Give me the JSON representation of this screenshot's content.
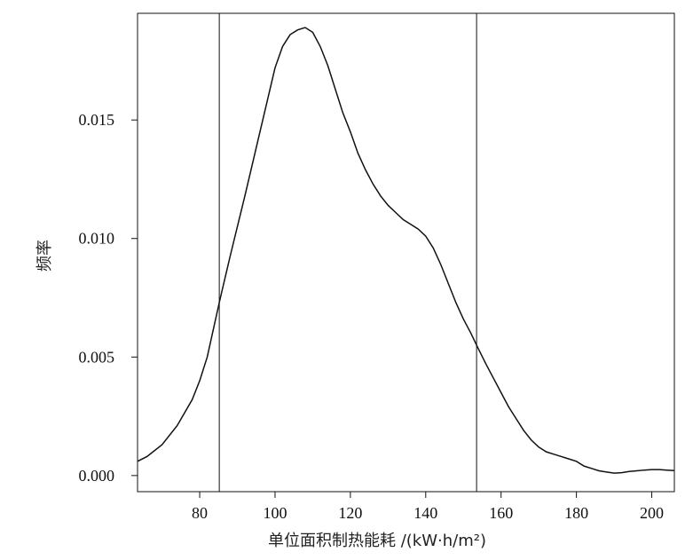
{
  "chart_data": {
    "type": "line",
    "title": "",
    "xlabel": "单位面积制热能耗 /(kW·h/m²)",
    "ylabel": "频率",
    "xlim": [
      63.5,
      206
    ],
    "ylim": [
      -0.00068,
      0.0195
    ],
    "grid": false,
    "legend": "none",
    "x_ticks": [
      "80",
      "100",
      "120",
      "140",
      "160",
      "180",
      "200"
    ],
    "y_ticks": [
      "0.000",
      "0.005",
      "0.010",
      "0.015"
    ],
    "x_tick_values": [
      80,
      100,
      120,
      140,
      160,
      180,
      200
    ],
    "y_tick_values": [
      0.0,
      0.005,
      0.01,
      0.015
    ],
    "vertical_lines": [
      85.2,
      153.5
    ],
    "series": [
      {
        "x": [
          63.5,
          66,
          70,
          74,
          78,
          80,
          82,
          85.2,
          88,
          92,
          96,
          100,
          102,
          104,
          106,
          108,
          110,
          112,
          114,
          116,
          118,
          120,
          122,
          124,
          126,
          128,
          130,
          132,
          134,
          136,
          138,
          140,
          142,
          144,
          146,
          148,
          150,
          152,
          153.5,
          156,
          158,
          160,
          162,
          164,
          166,
          168,
          170,
          172,
          174,
          176,
          178,
          180,
          182,
          184,
          186,
          188,
          190,
          192,
          194,
          196,
          198,
          200,
          202,
          204,
          206
        ],
        "y": [
          0.0006,
          0.0008,
          0.0013,
          0.0021,
          0.0032,
          0.004,
          0.005,
          0.0073,
          0.0092,
          0.0118,
          0.0145,
          0.0172,
          0.0181,
          0.0186,
          0.0188,
          0.0189,
          0.0187,
          0.0181,
          0.0173,
          0.0163,
          0.0153,
          0.0145,
          0.0136,
          0.0129,
          0.0123,
          0.0118,
          0.0114,
          0.0111,
          0.0108,
          0.0106,
          0.0104,
          0.0101,
          0.0096,
          0.0089,
          0.0081,
          0.0073,
          0.0066,
          0.006,
          0.0055,
          0.0047,
          0.0041,
          0.0035,
          0.0029,
          0.0024,
          0.0019,
          0.0015,
          0.0012,
          0.001,
          0.0009,
          0.0008,
          0.0007,
          0.0006,
          0.0004,
          0.0003,
          0.0002,
          0.00015,
          0.0001,
          0.00012,
          0.00017,
          0.0002,
          0.00023,
          0.00025,
          0.00025,
          0.00023,
          0.00021
        ]
      }
    ]
  },
  "colors": {
    "line": "#111111",
    "axis": "#111111",
    "background": "#ffffff"
  }
}
